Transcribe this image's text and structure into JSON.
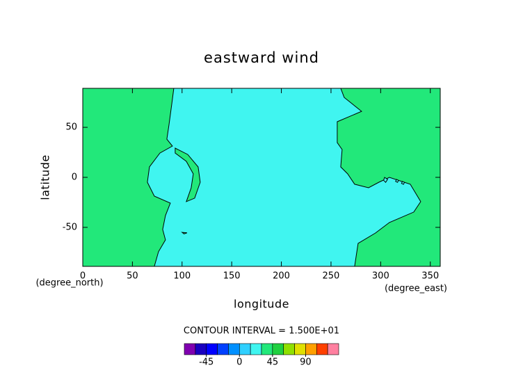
{
  "chart_data": {
    "type": "contour",
    "title": "eastward wind",
    "x_label": "longitude",
    "y_label": "latitude",
    "x_unit": "(degree_east)",
    "y_unit": "(degree_north)",
    "note": "CONTOUR INTERVAL = 1.500E+01",
    "xlim": [
      0,
      360
    ],
    "ylim": [
      -89,
      89
    ],
    "xticks": [
      0,
      50,
      100,
      150,
      200,
      250,
      300,
      350
    ],
    "yticks": [
      -50,
      0,
      50
    ],
    "background_color": "#22e87a",
    "regions": [
      {
        "color": "#40f5f0",
        "x": [
          91.7,
          89.6,
          86.8,
          84.7,
          90.3,
          77.7,
          67.2,
          65.1,
          72.1,
          88.2,
          83.3,
          80.5,
          83.3,
          76.3,
          72.1,
          273.8,
          277.3,
          294.8,
          308.8,
          333.3,
          340.3,
          329.8,
          308.8,
          298.3,
          287.8,
          273.8,
          266.8,
          259.8,
          261.2,
          256.3,
          256.3,
          280.8,
          263.3,
          259.8
        ],
        "y": [
          89,
          72.9,
          52.1,
          38.2,
          31.3,
          24.3,
          10.4,
          -4.9,
          -18.8,
          -25.7,
          -38.2,
          -52.1,
          -62.5,
          -74.3,
          -89,
          -89,
          -66,
          -55.6,
          -45.1,
          -34.7,
          -24.3,
          -6.9,
          0,
          -4.9,
          -10.4,
          -6.9,
          3.5,
          10.4,
          27.8,
          34.7,
          55.6,
          66,
          79.9,
          89
        ]
      },
      {
        "color": "#22e87a",
        "x": [
          93.1,
          105.7,
          116.2,
          118.3,
          112.7,
          104.3,
          109.2,
          111.3,
          104.3,
          93.1
        ],
        "y": [
          29.2,
          22.9,
          10.4,
          -4.9,
          -20.8,
          -24.3,
          -10.4,
          3.5,
          16,
          24.3
        ]
      },
      {
        "color": "#22e87a",
        "x": [
          100,
          105,
          102
        ],
        "y": [
          -55,
          -55.5,
          -56.5
        ]
      },
      {
        "color": "#40f5f0",
        "x": [
          304,
          307,
          305,
          303
        ],
        "y": [
          0,
          -2,
          -5,
          -3
        ]
      },
      {
        "color": "#40f5f0",
        "x": [
          316,
          318,
          317,
          315
        ],
        "y": [
          -2,
          -3,
          -5,
          -4
        ]
      },
      {
        "color": "#40f5f0",
        "x": [
          322,
          324,
          323,
          321
        ],
        "y": [
          -4,
          -5,
          -7,
          -6
        ]
      }
    ],
    "colorbar": {
      "levels": [
        -75,
        -60,
        -45,
        -30,
        -15,
        0,
        15,
        30,
        45,
        60,
        75,
        90,
        105,
        120,
        135
      ],
      "colors": [
        "#8000b0",
        "#1a00c0",
        "#0000ff",
        "#0040ff",
        "#0090ff",
        "#30d0ff",
        "#40f5f0",
        "#22e87a",
        "#20d040",
        "#90e000",
        "#e0e000",
        "#ffa000",
        "#ff4000",
        "#ff80a0"
      ],
      "ticks": [
        -45,
        0,
        45,
        90
      ]
    }
  }
}
